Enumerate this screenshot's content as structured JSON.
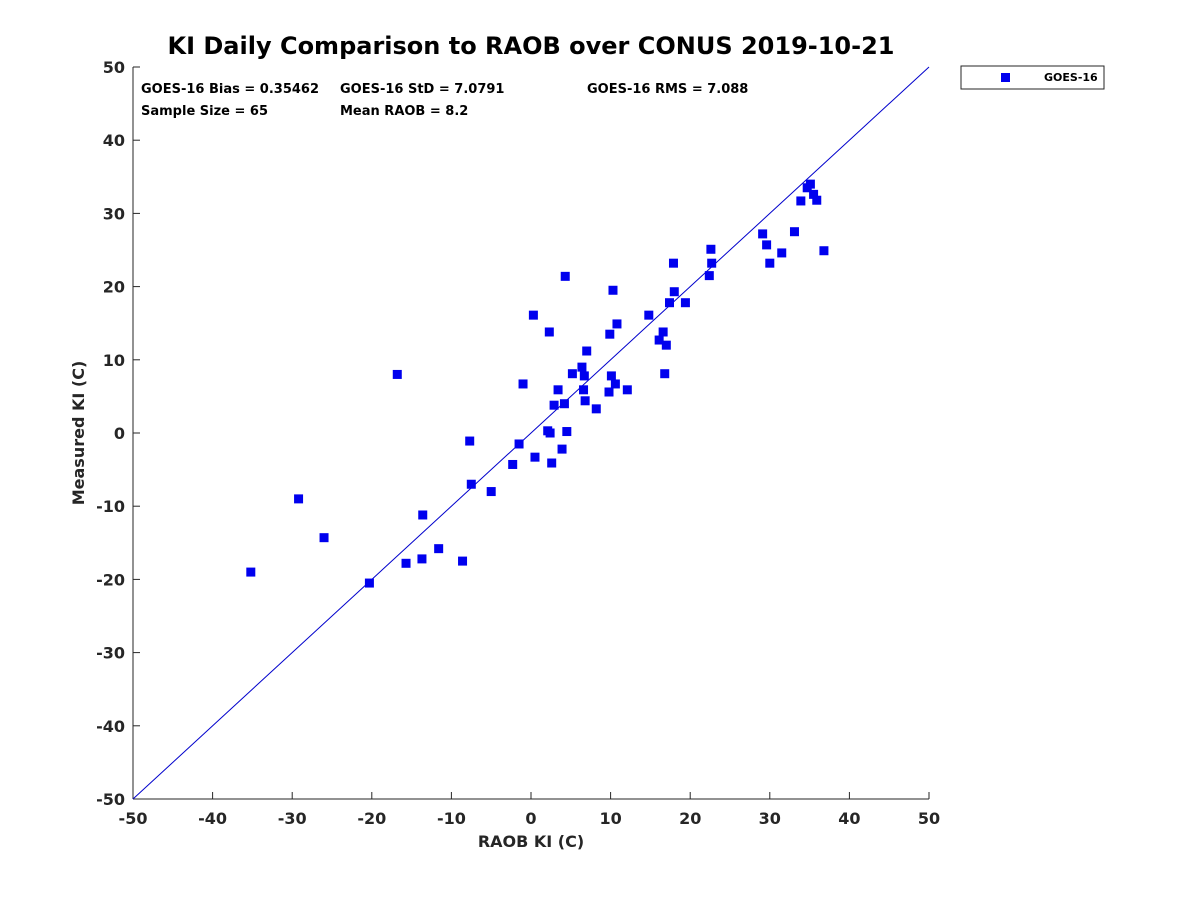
{
  "chart_data": {
    "type": "scatter",
    "title": "KI Daily Comparison to RAOB over CONUS 2019-10-21",
    "xlabel": "RAOB KI (C)",
    "ylabel": "Measured KI (C)",
    "xlim": [
      -50,
      50
    ],
    "ylim": [
      -50,
      50
    ],
    "xticks": [
      -50,
      -40,
      -30,
      -20,
      -10,
      0,
      10,
      20,
      30,
      40,
      50
    ],
    "yticks": [
      -50,
      -40,
      -30,
      -20,
      -10,
      0,
      10,
      20,
      30,
      40,
      50
    ],
    "grid": false,
    "legend_position": "outside-top-right",
    "reference_line": {
      "type": "one-to-one",
      "color": "#0000cc"
    },
    "stats": {
      "bias": "GOES-16 Bias = 0.35462",
      "std": "GOES-16 StD = 7.0791",
      "rms": "GOES-16 RMS = 7.088",
      "sample_size": "Sample Size = 65",
      "mean_raob": "Mean RAOB = 8.2"
    },
    "series": [
      {
        "name": "GOES-16",
        "color": "#0000ee",
        "marker": "square",
        "points": [
          [
            -35.2,
            -19.0
          ],
          [
            -29.2,
            -9.0
          ],
          [
            -26.0,
            -14.3
          ],
          [
            -20.3,
            -20.5
          ],
          [
            -16.8,
            8.0
          ],
          [
            -15.7,
            -17.8
          ],
          [
            -13.7,
            -17.2
          ],
          [
            -13.6,
            -11.2
          ],
          [
            -11.6,
            -15.8
          ],
          [
            -8.6,
            -17.5
          ],
          [
            -7.7,
            -1.1
          ],
          [
            -7.5,
            -7.0
          ],
          [
            -5.0,
            -8.0
          ],
          [
            -2.3,
            -4.3
          ],
          [
            -1.0,
            6.7
          ],
          [
            0.3,
            16.1
          ],
          [
            0.5,
            -3.3
          ],
          [
            2.1,
            0.3
          ],
          [
            2.3,
            13.8
          ],
          [
            2.4,
            0.0
          ],
          [
            2.6,
            -4.1
          ],
          [
            2.9,
            3.8
          ],
          [
            3.4,
            5.9
          ],
          [
            3.9,
            -2.2
          ],
          [
            4.2,
            4.0
          ],
          [
            4.3,
            21.4
          ],
          [
            4.5,
            0.2
          ],
          [
            5.2,
            8.1
          ],
          [
            6.4,
            9.0
          ],
          [
            6.6,
            5.9
          ],
          [
            6.7,
            7.8
          ],
          [
            6.8,
            4.4
          ],
          [
            7.0,
            11.2
          ],
          [
            8.2,
            3.3
          ],
          [
            9.8,
            5.6
          ],
          [
            9.9,
            13.5
          ],
          [
            10.1,
            7.8
          ],
          [
            10.3,
            19.5
          ],
          [
            10.6,
            6.7
          ],
          [
            10.8,
            14.9
          ],
          [
            12.1,
            5.9
          ],
          [
            14.8,
            16.1
          ],
          [
            16.1,
            12.7
          ],
          [
            16.6,
            13.8
          ],
          [
            16.8,
            8.1
          ],
          [
            17.0,
            12.0
          ],
          [
            17.4,
            17.8
          ],
          [
            17.9,
            23.2
          ],
          [
            18.0,
            19.3
          ],
          [
            19.4,
            17.8
          ],
          [
            22.4,
            21.5
          ],
          [
            22.6,
            25.1
          ],
          [
            22.7,
            23.2
          ],
          [
            29.1,
            27.2
          ],
          [
            29.6,
            25.7
          ],
          [
            30.0,
            23.2
          ],
          [
            31.5,
            24.6
          ],
          [
            33.1,
            27.5
          ],
          [
            33.9,
            31.7
          ],
          [
            34.7,
            33.5
          ],
          [
            35.1,
            34.0
          ],
          [
            35.5,
            32.6
          ],
          [
            35.9,
            31.8
          ],
          [
            36.8,
            24.9
          ],
          [
            -1.5,
            -1.5
          ]
        ]
      }
    ]
  }
}
